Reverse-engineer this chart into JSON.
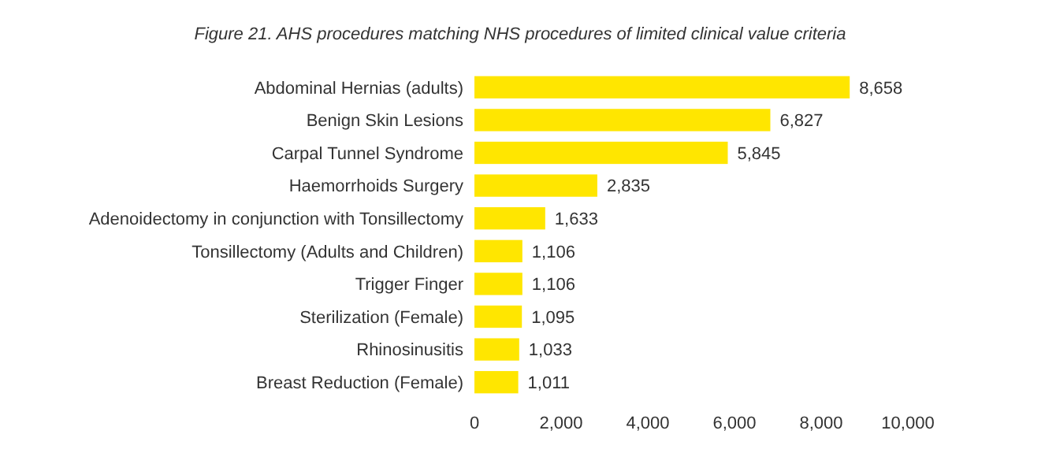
{
  "chart_data": {
    "type": "bar",
    "orientation": "horizontal",
    "title": "Figure 21. AHS procedures matching NHS procedures of limited clinical value criteria",
    "categories": [
      "Abdominal Hernias (adults)",
      "Benign Skin Lesions",
      "Carpal Tunnel Syndrome",
      "Haemorrhoids Surgery",
      "Adenoidectomy in conjunction with Tonsillectomy",
      "Tonsillectomy (Adults and Children)",
      "Trigger Finger",
      "Sterilization (Female)",
      "Rhinosinusitis",
      "Breast Reduction (Female)"
    ],
    "values": [
      8658,
      6827,
      5845,
      2835,
      1633,
      1106,
      1106,
      1095,
      1033,
      1011
    ],
    "value_labels": [
      "8,658",
      "6,827",
      "5,845",
      "2,835",
      "1,633",
      "1,106",
      "1,106",
      "1,095",
      "1,033",
      "1,011"
    ],
    "color": "#ffe600",
    "xlim": [
      0,
      10000
    ],
    "xticks": [
      0,
      {
        "value": 2000,
        "label": "2,000"
      },
      {
        "value": 4000,
        "label": "4,000"
      },
      {
        "value": 6000,
        "label": "6,000"
      },
      {
        "value": 8000,
        "label": "8,000"
      },
      {
        "value": 10000,
        "label": "10,000"
      }
    ],
    "grid": false
  }
}
